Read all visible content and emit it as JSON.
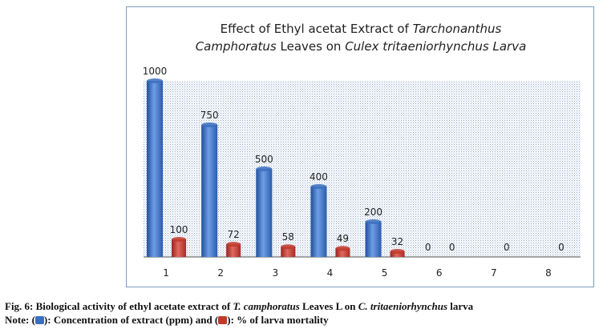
{
  "chart_data": {
    "type": "bar",
    "title_line1": {
      "prefix": "Effect of Ethyl acetat Extract of ",
      "italic": "Tarchonanthus"
    },
    "title_line2": {
      "italic1": "Camphoratus",
      "middle": " Leaves on ",
      "italic2": "Culex tritaeniorhynchus",
      "space": " ",
      "italic3": "Larva"
    },
    "categories": [
      "1",
      "2",
      "3",
      "4",
      "5",
      "6",
      "7",
      "8"
    ],
    "series": [
      {
        "name": "Concentration of extract (ppm)",
        "color": "#3a6ebf",
        "values": [
          1000,
          750,
          500,
          400,
          200,
          0,
          null,
          null
        ]
      },
      {
        "name": "% of larva mortality",
        "color": "#c0392b",
        "values": [
          100,
          72,
          58,
          49,
          32,
          0,
          0,
          0
        ]
      }
    ],
    "ylim": [
      0,
      1000
    ],
    "grid": false,
    "xlabel": "",
    "ylabel": ""
  },
  "caption": {
    "line1_a": "Fig. 6: Biological activity of ethyl acetate extract of ",
    "line1_b": "T. camphoratus",
    "line1_c": " Leaves L on ",
    "line1_d": "C. tritaeniorhynchus",
    "line1_e": " larva",
    "line2_a": "Note: (",
    "line2_b": "): Concentration of extract (ppm) and (",
    "line2_c": "): % of larva mortality",
    "blue_swatch": "#3a6ebf",
    "red_swatch": "#c0392b"
  }
}
